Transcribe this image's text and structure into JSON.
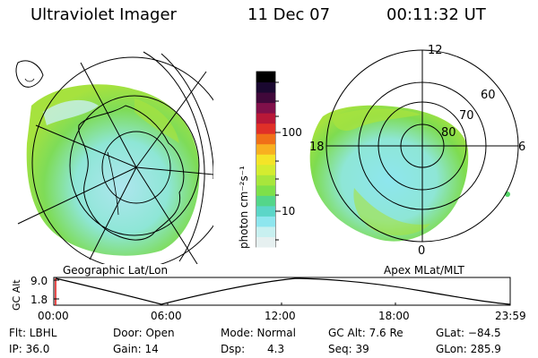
{
  "header": {
    "instrument": "Ultraviolet Imager",
    "date": "11 Dec 07",
    "time": "00:11:32 UT"
  },
  "left_panel": {
    "caption": "Geographic Lat/Lon"
  },
  "right_panel": {
    "caption": "Apex MLat/MLT",
    "mlt_labels": [
      "12",
      "18",
      "6",
      "0"
    ],
    "lat_labels": [
      "60",
      "70",
      "80"
    ]
  },
  "colorbar": {
    "unit_label": "photon cm⁻²s⁻¹",
    "ticks": [
      "100",
      "10"
    ],
    "colors": [
      "#e6f0f0",
      "#c8f0f0",
      "#8ee6ee",
      "#5cd6c8",
      "#54d68a",
      "#7ee04a",
      "#a8e63c",
      "#d4ec30",
      "#f4e428",
      "#f8b020",
      "#f07018",
      "#e03028",
      "#b81838",
      "#80104a",
      "#40083a",
      "#1a0830",
      "#000000"
    ]
  },
  "altitude_plot": {
    "axis_label": "GC Alt",
    "y_ticks": [
      "9.0",
      "1.8"
    ],
    "x_ticks": [
      "00:00",
      "06:00",
      "12:00",
      "18:00",
      "23:59"
    ]
  },
  "status": {
    "row1": {
      "flt": "Flt: LBHL",
      "door": "Door: Open",
      "mode": "Mode: Normal",
      "gcalt": "GC Alt: 7.6 Re",
      "glat": "GLat: −84.5"
    },
    "row2": {
      "ip": "IP: 36.0",
      "gain": "Gain: 14",
      "dsp_label": "Dsp:",
      "dsp_val": "4.3",
      "seq": "Seq: 39",
      "glon": "GLon: 285.9"
    }
  }
}
